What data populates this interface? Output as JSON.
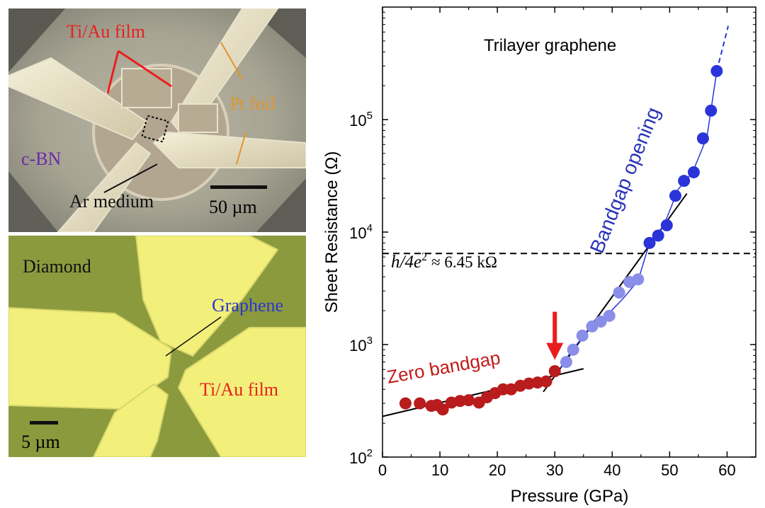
{
  "photo_top": {
    "labels": {
      "ti_au": "Ti/Au film",
      "pt_foil": "Pt foil",
      "cbn": "c-BN",
      "ar_medium": "Ar medium",
      "scale": "50 µm"
    },
    "colors": {
      "ti_au": "#e8201f",
      "pt_foil": "#e0962a",
      "cbn": "#6a2aa8",
      "ar_medium": "#111111"
    }
  },
  "photo_bottom": {
    "labels": {
      "diamond": "Diamond",
      "graphene": "Graphene",
      "ti_au": "Ti/Au film",
      "scale": "5 µm"
    },
    "colors": {
      "graphene": "#2a38c8",
      "ti_au": "#e8201f",
      "diamond": "#111111"
    }
  },
  "chart_data": {
    "type": "scatter",
    "title": "Trilayer graphene",
    "xlabel": "Pressure (GPa)",
    "ylabel": "Sheet Resistance (Ω)",
    "xlim": [
      0,
      65
    ],
    "ylim": [
      100,
      1000000
    ],
    "yscale": "log",
    "xticks": [
      "0",
      "10",
      "20",
      "30",
      "40",
      "50",
      "60"
    ],
    "yticks": [
      {
        "base": "10",
        "exp": "2"
      },
      {
        "base": "10",
        "exp": "3"
      },
      {
        "base": "10",
        "exp": "4"
      },
      {
        "base": "10",
        "exp": "5"
      }
    ],
    "annotations": {
      "zero_bandgap": "Zero bandgap",
      "bandgap_opening": "Bandgap opening",
      "quantum_h": "h",
      "quantum_rest": "/4e",
      "quantum_exp": "2",
      "quantum_value": "≈ 6.45 kΩ"
    },
    "reference_line": {
      "y": 6450,
      "style": "dashed"
    },
    "transition_arrow_x": 30,
    "series": [
      {
        "color": "#b81c1c",
        "x": [
          4,
          6.5,
          8.5,
          9.5,
          10.5,
          12,
          13.5,
          15,
          16.8,
          18.2,
          19.6,
          21,
          22.4,
          24,
          25.5,
          27,
          28.5,
          30
        ],
        "y": [
          300,
          300,
          285,
          290,
          265,
          305,
          315,
          320,
          305,
          340,
          370,
          400,
          400,
          430,
          450,
          460,
          470,
          580
        ]
      },
      {
        "color": "#8a8ee8",
        "x": [
          32,
          33.2,
          34.8,
          36.5,
          38,
          39.5,
          41.2,
          43,
          44.5
        ],
        "y": [
          700,
          900,
          1200,
          1450,
          1600,
          1800,
          2900,
          3600,
          3800
        ]
      },
      {
        "color": "#2a34d8",
        "x": [
          46.5,
          48,
          49.5,
          51,
          52.5,
          54.2,
          55.8,
          57.2,
          58.2
        ],
        "y": [
          8000,
          9300,
          11500,
          21000,
          28500,
          34000,
          68000,
          120000,
          270000
        ]
      }
    ],
    "fit_lines": [
      {
        "x": [
          0,
          35
        ],
        "y": [
          230,
          610
        ]
      },
      {
        "x": [
          28,
          53
        ],
        "y": [
          380,
          22000
        ]
      }
    ],
    "guide_curve": {
      "color": "#2a34d8",
      "x": [
        31,
        33,
        36,
        39,
        42,
        44.5,
        46.5,
        49,
        51.5,
        54,
        56.5,
        58.2
      ],
      "y": [
        620,
        900,
        1350,
        1800,
        2600,
        3700,
        8000,
        11500,
        24000,
        34000,
        70000,
        270000
      ]
    },
    "guide_dashed": {
      "color": "#2a34d8",
      "x": [
        58.2,
        60.2
      ],
      "y": [
        270000,
        680000
      ]
    }
  }
}
